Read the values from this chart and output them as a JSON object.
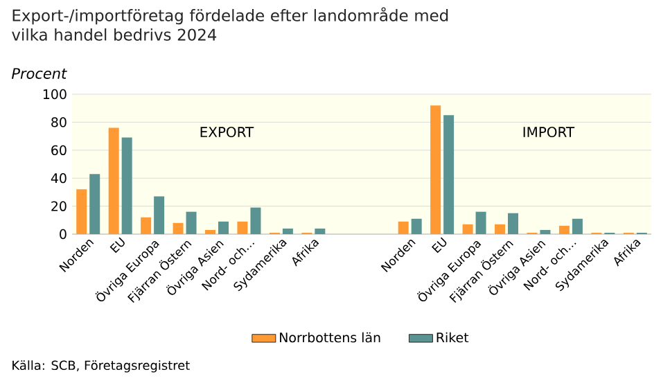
{
  "chart_data": {
    "type": "bar",
    "title": "Export-/importföretag fördelade efter landområde med vilka handel bedrivs 2024",
    "subtitle": "Procent",
    "categories": [
      "Norden",
      "EU",
      "Övriga Europa",
      "Fjärran Östern",
      "Övriga Asien",
      "Nord- och…",
      "Sydamerika",
      "Afrika",
      null,
      null,
      "Norden",
      "EU",
      "Övriga Europa",
      "Fjärran Östern",
      "Övriga Asien",
      "Nord- och…",
      "Sydamerika",
      "Afrika"
    ],
    "series": [
      {
        "name": "Norrbottens län",
        "color": "#ff9933",
        "values": [
          32,
          76,
          12,
          8,
          3,
          9,
          1,
          1,
          null,
          null,
          9,
          92,
          7,
          7,
          1,
          6,
          1,
          1
        ]
      },
      {
        "name": "Riket",
        "color": "#5b9393",
        "values": [
          43,
          69,
          27,
          16,
          9,
          19,
          4,
          4,
          null,
          null,
          11,
          85,
          16,
          15,
          3,
          11,
          1,
          1
        ]
      }
    ],
    "ylim": [
      0,
      100
    ],
    "yticks": [
      0,
      20,
      40,
      60,
      80,
      100
    ],
    "grid": "y",
    "legend": "bottom",
    "annotations": [
      "EXPORT",
      "IMPORT",
      "Källa: SCB, Företagsregistret"
    ]
  }
}
